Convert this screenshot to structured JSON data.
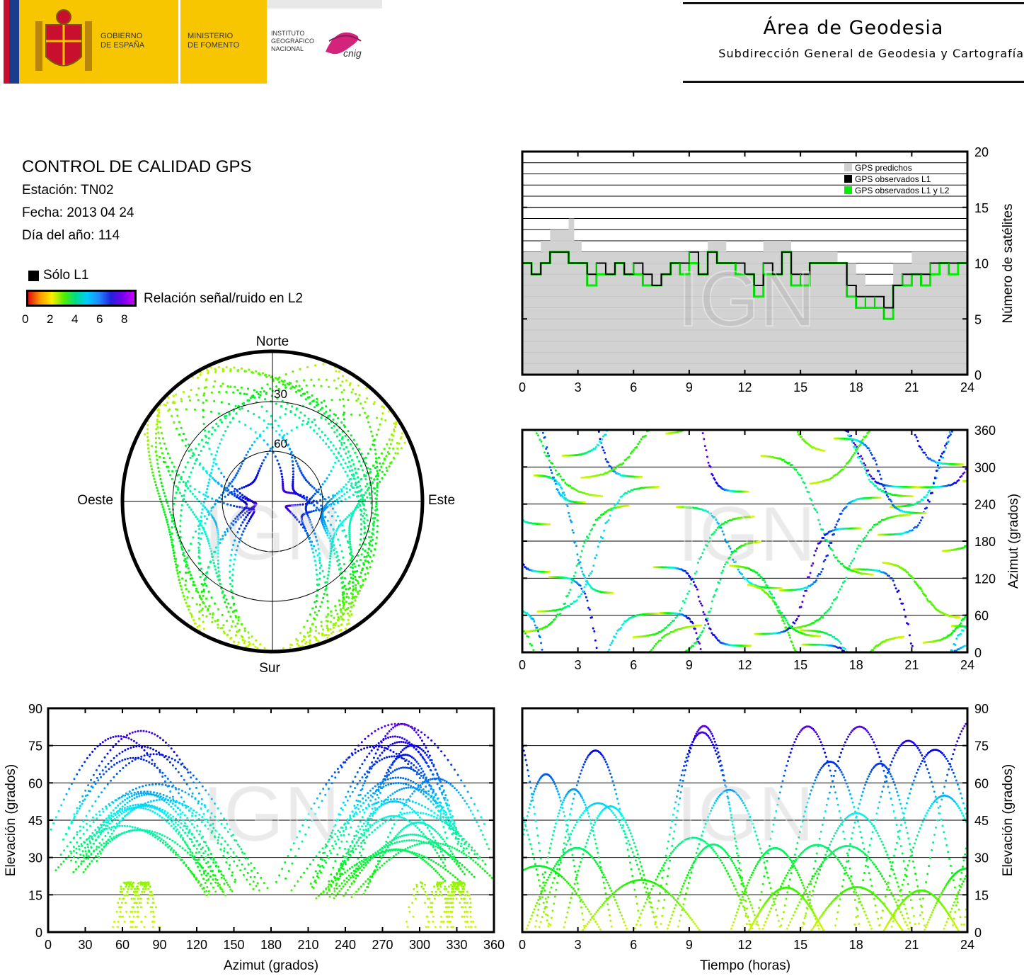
{
  "header": {
    "gobierno": "GOBIERNO\nDE ESPAÑA",
    "ministerio": "MINISTERIO\nDE FOMENTO",
    "instituto": "INSTITUTO\nGEOGRÁFICO\nNACIONAL",
    "cnig": "cnig",
    "area_title": "Área de Geodesia",
    "area_subtitle": "Subdirección General de Geodesia y Cartografía"
  },
  "info": {
    "title": "CONTROL DE CALIDAD GPS",
    "station": "Estación: TN02",
    "date": "Fecha: 2013 04 24",
    "doy": "Día del año: 114"
  },
  "legend": {
    "solo_l1": "Sólo L1",
    "snr_label": "Relación señal/ruido en L2",
    "ticks": [
      "0",
      "2",
      "4",
      "6",
      "8"
    ],
    "colors": [
      "#e01010",
      "#ff9900",
      "#ffee00",
      "#55ee00",
      "#00dd88",
      "#00ccff",
      "#2288ff",
      "#2222dd",
      "#7700ee",
      "#cc00ff"
    ]
  },
  "watermark": "IGN",
  "chart_data": [
    {
      "type": "polar-skyplot",
      "directions": {
        "north": "Norte",
        "south": "Sur",
        "east": "Este",
        "west": "Oeste"
      },
      "rings": [
        30,
        60
      ],
      "ring_labels": [
        "30",
        "60"
      ]
    },
    {
      "type": "area",
      "title": "Número de satélites",
      "xlabel": "",
      "ylabel": "Número de satélites",
      "xlim": [
        0,
        24
      ],
      "ylim": [
        0,
        20
      ],
      "xticks": [
        "0",
        "3",
        "6",
        "9",
        "12",
        "15",
        "18",
        "21",
        "24"
      ],
      "yticks": [
        "0",
        "5",
        "10",
        "15",
        "20"
      ],
      "legend": [
        "GPS predichos",
        "GPS observados L1",
        "GPS observados L1 y L2"
      ],
      "series_colors": [
        "#d0d0d0",
        "#000000",
        "#00ee00"
      ],
      "predicted": [
        [
          0,
          11
        ],
        [
          0.5,
          11
        ],
        [
          1,
          12
        ],
        [
          1.5,
          13
        ],
        [
          2,
          13
        ],
        [
          2.5,
          14
        ],
        [
          2.8,
          12
        ],
        [
          3.2,
          11
        ],
        [
          4,
          11
        ],
        [
          5,
          11
        ],
        [
          6,
          11
        ],
        [
          7,
          11
        ],
        [
          8,
          11
        ],
        [
          9,
          11
        ],
        [
          9.5,
          11
        ],
        [
          10,
          12
        ],
        [
          10.5,
          12
        ],
        [
          11,
          11
        ],
        [
          12,
          11
        ],
        [
          12.5,
          11
        ],
        [
          13,
          12
        ],
        [
          14,
          12
        ],
        [
          14.5,
          11
        ],
        [
          15,
          11
        ],
        [
          16,
          11
        ],
        [
          17,
          10
        ],
        [
          18,
          9
        ],
        [
          18.5,
          8
        ],
        [
          19,
          8
        ],
        [
          19.5,
          8
        ],
        [
          20,
          10
        ],
        [
          21,
          11
        ],
        [
          22,
          11
        ],
        [
          23,
          11
        ],
        [
          24,
          11
        ]
      ],
      "observed_l1": [
        [
          0,
          10
        ],
        [
          0.5,
          9
        ],
        [
          1,
          10
        ],
        [
          1.5,
          11
        ],
        [
          2,
          11
        ],
        [
          2.5,
          10
        ],
        [
          3,
          10
        ],
        [
          3.5,
          9
        ],
        [
          4,
          10
        ],
        [
          4.5,
          9
        ],
        [
          5,
          10
        ],
        [
          5.5,
          9
        ],
        [
          6,
          10
        ],
        [
          6.5,
          9
        ],
        [
          7,
          8
        ],
        [
          7.5,
          9
        ],
        [
          8,
          10
        ],
        [
          8.5,
          10
        ],
        [
          9,
          11
        ],
        [
          9.5,
          9
        ],
        [
          10,
          11
        ],
        [
          10.5,
          10
        ],
        [
          11,
          10
        ],
        [
          11.5,
          10
        ],
        [
          12,
          9
        ],
        [
          12.5,
          8
        ],
        [
          13,
          10
        ],
        [
          13.5,
          9
        ],
        [
          14,
          11
        ],
        [
          14.5,
          9
        ],
        [
          15,
          9
        ],
        [
          15.5,
          10
        ],
        [
          16,
          10
        ],
        [
          16.5,
          10
        ],
        [
          17,
          10
        ],
        [
          17.5,
          8
        ],
        [
          18,
          7
        ],
        [
          18.5,
          7
        ],
        [
          19,
          7
        ],
        [
          19.5,
          6
        ],
        [
          20,
          8
        ],
        [
          20.5,
          9
        ],
        [
          21,
          9
        ],
        [
          21.5,
          9
        ],
        [
          22,
          10
        ],
        [
          22.5,
          10
        ],
        [
          23,
          10
        ],
        [
          23.5,
          10
        ],
        [
          24,
          10
        ]
      ],
      "observed_l1l2": [
        [
          0,
          10
        ],
        [
          0.5,
          9
        ],
        [
          1,
          10
        ],
        [
          1.5,
          11
        ],
        [
          2,
          11
        ],
        [
          2.5,
          10
        ],
        [
          3,
          10
        ],
        [
          3.5,
          8
        ],
        [
          4,
          9
        ],
        [
          4.5,
          9
        ],
        [
          5,
          10
        ],
        [
          5.5,
          9
        ],
        [
          6,
          9
        ],
        [
          6.5,
          8
        ],
        [
          7,
          8
        ],
        [
          7.5,
          9
        ],
        [
          8,
          10
        ],
        [
          8.5,
          9
        ],
        [
          9,
          10
        ],
        [
          9.5,
          9
        ],
        [
          10,
          11
        ],
        [
          10.5,
          10
        ],
        [
          11,
          10
        ],
        [
          11.5,
          9
        ],
        [
          12,
          9
        ],
        [
          12.5,
          7
        ],
        [
          13,
          9
        ],
        [
          13.5,
          9
        ],
        [
          14,
          11
        ],
        [
          14.5,
          8
        ],
        [
          15,
          8
        ],
        [
          15.5,
          10
        ],
        [
          16,
          10
        ],
        [
          16.5,
          10
        ],
        [
          17,
          10
        ],
        [
          17.5,
          7
        ],
        [
          18,
          6
        ],
        [
          18.5,
          6
        ],
        [
          19,
          6
        ],
        [
          19.5,
          5
        ],
        [
          20,
          8
        ],
        [
          20.5,
          8
        ],
        [
          21,
          9
        ],
        [
          21.5,
          8
        ],
        [
          22,
          9
        ],
        [
          22.5,
          10
        ],
        [
          23,
          9
        ],
        [
          23.5,
          10
        ],
        [
          24,
          10
        ]
      ]
    },
    {
      "type": "scatter",
      "title": "",
      "ylabel": "Azimut (grados)",
      "xlim": [
        0,
        24
      ],
      "ylim": [
        0,
        360
      ],
      "xticks": [
        "0",
        "3",
        "6",
        "9",
        "12",
        "15",
        "18",
        "21",
        "24"
      ],
      "yticks": [
        "0",
        "60",
        "120",
        "180",
        "240",
        "300",
        "360"
      ]
    },
    {
      "type": "scatter",
      "title": "",
      "xlabel": "Azimut (grados)",
      "ylabel": "Elevación (grados)",
      "xlim": [
        0,
        360
      ],
      "ylim": [
        0,
        90
      ],
      "xticks": [
        "0",
        "30",
        "60",
        "90",
        "120",
        "150",
        "180",
        "210",
        "240",
        "270",
        "300",
        "330",
        "360"
      ],
      "yticks": [
        "0",
        "15",
        "30",
        "45",
        "60",
        "75",
        "90"
      ]
    },
    {
      "type": "scatter",
      "title": "",
      "xlabel": "Tiempo (horas)",
      "ylabel": "Elevación (grados)",
      "xlim": [
        0,
        24
      ],
      "ylim": [
        0,
        90
      ],
      "xticks": [
        "0",
        "3",
        "6",
        "9",
        "12",
        "15",
        "18",
        "21",
        "24"
      ],
      "yticks": [
        "0",
        "15",
        "30",
        "45",
        "60",
        "75",
        "90"
      ]
    }
  ]
}
